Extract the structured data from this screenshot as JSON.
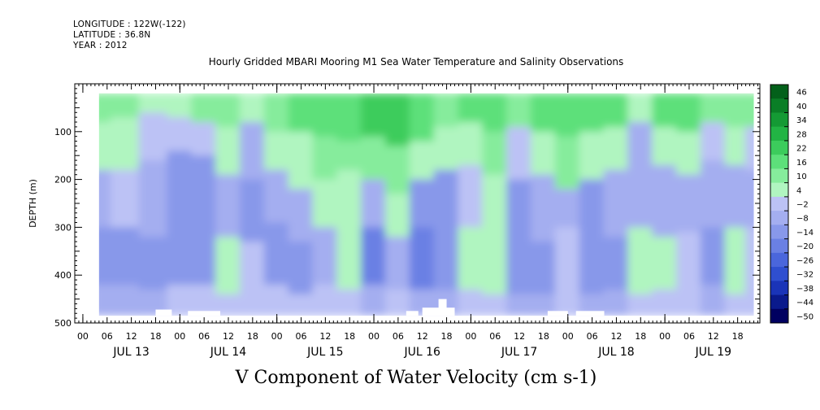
{
  "header": {
    "longitude": "LONGITUDE : 122W(-122)",
    "latitude": "LATITUDE : 36.8N",
    "year": "YEAR : 2012"
  },
  "chart_data": {
    "type": "heatmap",
    "title": "Hourly Gridded MBARI Mooring M1 Sea Water Temperature and Salinity Observations",
    "variable_label": "V Component of Water Velocity (cm s-1)",
    "ylabel": "DEPTH (m)",
    "ylim": [
      500,
      0
    ],
    "y_ticks": [
      100,
      200,
      300,
      400,
      500
    ],
    "y_data_range": [
      20,
      485
    ],
    "hour_ticks": [
      "00",
      "06",
      "12",
      "18",
      "00",
      "06",
      "12",
      "18",
      "00",
      "06",
      "12",
      "18",
      "00",
      "06",
      "12",
      "18",
      "00",
      "06",
      "12",
      "18",
      "00",
      "06",
      "12",
      "18",
      "00",
      "06",
      "12",
      "18"
    ],
    "day_labels": [
      "JUL 13",
      "JUL 14",
      "JUL 15",
      "JUL 16",
      "JUL 17",
      "JUL 18",
      "JUL 19"
    ],
    "x_axis_hours_range": [
      -2,
      167.5
    ],
    "x_data_hours_range": [
      4,
      166
    ],
    "colorbar": {
      "levels": [
        -50,
        -44,
        -38,
        -32,
        -26,
        -20,
        -14,
        -8,
        -2,
        4,
        10,
        16,
        22,
        28,
        34,
        40,
        46
      ],
      "label_levels": [
        46,
        40,
        34,
        28,
        22,
        16,
        10,
        4,
        -2,
        -8,
        -14,
        -20,
        -26,
        -32,
        -38,
        -44,
        -50
      ],
      "colors": [
        "#000060",
        "#0a1a8c",
        "#1a34b8",
        "#2f4fd0",
        "#4a66dc",
        "#6a80e4",
        "#8898ea",
        "#a4aef0",
        "#bcc2f5",
        "#b0f5c0",
        "#86ec9c",
        "#5de07a",
        "#3ccc5c",
        "#22b444",
        "#149a34",
        "#0a7e26",
        "#03601a"
      ]
    },
    "columns": [
      {
        "t": 4,
        "bands": [
          [
            20,
            80,
            14
          ],
          [
            80,
            180,
            6
          ],
          [
            180,
            300,
            -4
          ],
          [
            300,
            420,
            -10
          ],
          [
            420,
            485,
            -4
          ]
        ]
      },
      {
        "t": 10,
        "bands": [
          [
            20,
            70,
            12
          ],
          [
            70,
            180,
            8
          ],
          [
            180,
            300,
            2
          ],
          [
            300,
            420,
            -8
          ],
          [
            420,
            485,
            -3
          ]
        ]
      },
      {
        "t": 18,
        "bands": [
          [
            20,
            60,
            10
          ],
          [
            60,
            160,
            4
          ],
          [
            160,
            320,
            -6
          ],
          [
            320,
            430,
            -12
          ],
          [
            430,
            485,
            -4
          ]
        ]
      },
      {
        "t": 24,
        "bands": [
          [
            20,
            70,
            10
          ],
          [
            70,
            140,
            2
          ],
          [
            140,
            330,
            -10
          ],
          [
            330,
            420,
            -8
          ],
          [
            420,
            485,
            2
          ]
        ]
      },
      {
        "t": 30,
        "bands": [
          [
            20,
            80,
            12
          ],
          [
            80,
            150,
            4
          ],
          [
            150,
            300,
            -8
          ],
          [
            300,
            420,
            -10
          ],
          [
            420,
            485,
            0
          ]
        ]
      },
      {
        "t": 36,
        "bands": [
          [
            20,
            90,
            12
          ],
          [
            90,
            190,
            8
          ],
          [
            190,
            320,
            -4
          ],
          [
            320,
            440,
            6
          ],
          [
            440,
            485,
            2
          ]
        ]
      },
      {
        "t": 42,
        "bands": [
          [
            20,
            80,
            10
          ],
          [
            80,
            200,
            -4
          ],
          [
            200,
            330,
            -8
          ],
          [
            330,
            430,
            4
          ],
          [
            430,
            485,
            0
          ]
        ]
      },
      {
        "t": 48,
        "bands": [
          [
            20,
            100,
            16
          ],
          [
            100,
            180,
            10
          ],
          [
            180,
            290,
            -4
          ],
          [
            290,
            420,
            -8
          ],
          [
            420,
            485,
            4
          ]
        ]
      },
      {
        "t": 54,
        "bands": [
          [
            20,
            100,
            18
          ],
          [
            100,
            220,
            10
          ],
          [
            220,
            330,
            -2
          ],
          [
            330,
            440,
            -8
          ],
          [
            440,
            485,
            2
          ]
        ]
      },
      {
        "t": 60,
        "bands": [
          [
            20,
            110,
            18
          ],
          [
            110,
            200,
            12
          ],
          [
            200,
            300,
            6
          ],
          [
            300,
            420,
            -6
          ],
          [
            420,
            485,
            2
          ]
        ]
      },
      {
        "t": 66,
        "bands": [
          [
            20,
            120,
            22
          ],
          [
            120,
            180,
            12
          ],
          [
            180,
            320,
            6
          ],
          [
            320,
            430,
            10
          ],
          [
            430,
            485,
            4
          ]
        ]
      },
      {
        "t": 72,
        "bands": [
          [
            20,
            110,
            24
          ],
          [
            110,
            200,
            14
          ],
          [
            200,
            300,
            -6
          ],
          [
            300,
            420,
            -14
          ],
          [
            420,
            485,
            -4
          ]
        ]
      },
      {
        "t": 78,
        "bands": [
          [
            20,
            130,
            26
          ],
          [
            130,
            230,
            14
          ],
          [
            230,
            320,
            6
          ],
          [
            320,
            430,
            -6
          ],
          [
            430,
            485,
            2
          ]
        ]
      },
      {
        "t": 84,
        "bands": [
          [
            20,
            120,
            22
          ],
          [
            120,
            200,
            10
          ],
          [
            200,
            300,
            -10
          ],
          [
            300,
            430,
            -14
          ],
          [
            430,
            485,
            -6
          ]
        ]
      },
      {
        "t": 90,
        "bands": [
          [
            20,
            90,
            16
          ],
          [
            90,
            180,
            8
          ],
          [
            180,
            300,
            -8
          ],
          [
            300,
            430,
            -12
          ],
          [
            430,
            485,
            -4
          ]
        ]
      },
      {
        "t": 96,
        "bands": [
          [
            20,
            80,
            18
          ],
          [
            80,
            170,
            10
          ],
          [
            170,
            300,
            2
          ],
          [
            300,
            430,
            8
          ],
          [
            430,
            485,
            2
          ]
        ]
      },
      {
        "t": 102,
        "bands": [
          [
            20,
            100,
            22
          ],
          [
            100,
            190,
            14
          ],
          [
            190,
            330,
            10
          ],
          [
            330,
            440,
            6
          ],
          [
            440,
            485,
            0
          ]
        ]
      },
      {
        "t": 108,
        "bands": [
          [
            20,
            90,
            14
          ],
          [
            90,
            200,
            4
          ],
          [
            200,
            330,
            -10
          ],
          [
            330,
            440,
            -12
          ],
          [
            440,
            485,
            -4
          ]
        ]
      },
      {
        "t": 114,
        "bands": [
          [
            20,
            100,
            20
          ],
          [
            100,
            190,
            10
          ],
          [
            190,
            330,
            -6
          ],
          [
            330,
            440,
            -10
          ],
          [
            440,
            485,
            -2
          ]
        ]
      },
      {
        "t": 120,
        "bands": [
          [
            20,
            110,
            20
          ],
          [
            110,
            220,
            12
          ],
          [
            220,
            300,
            -4
          ],
          [
            300,
            420,
            4
          ],
          [
            420,
            485,
            0
          ]
        ]
      },
      {
        "t": 126,
        "bands": [
          [
            20,
            100,
            22
          ],
          [
            100,
            200,
            10
          ],
          [
            200,
            320,
            -8
          ],
          [
            320,
            440,
            -12
          ],
          [
            440,
            485,
            -4
          ]
        ]
      },
      {
        "t": 132,
        "bands": [
          [
            20,
            90,
            18
          ],
          [
            90,
            180,
            8
          ],
          [
            180,
            320,
            -4
          ],
          [
            320,
            430,
            -10
          ],
          [
            430,
            485,
            -2
          ]
        ]
      },
      {
        "t": 138,
        "bands": [
          [
            20,
            80,
            10
          ],
          [
            80,
            160,
            -2
          ],
          [
            160,
            300,
            -6
          ],
          [
            300,
            440,
            6
          ],
          [
            440,
            485,
            2
          ]
        ]
      },
      {
        "t": 144,
        "bands": [
          [
            20,
            90,
            20
          ],
          [
            90,
            170,
            8
          ],
          [
            170,
            320,
            -4
          ],
          [
            320,
            430,
            8
          ],
          [
            430,
            485,
            4
          ]
        ]
      },
      {
        "t": 150,
        "bands": [
          [
            20,
            100,
            18
          ],
          [
            100,
            190,
            6
          ],
          [
            190,
            310,
            -6
          ],
          [
            310,
            430,
            4
          ],
          [
            430,
            485,
            2
          ]
        ]
      },
      {
        "t": 156,
        "bands": [
          [
            20,
            80,
            12
          ],
          [
            80,
            160,
            4
          ],
          [
            160,
            300,
            -4
          ],
          [
            300,
            420,
            -8
          ],
          [
            420,
            485,
            -2
          ]
        ]
      },
      {
        "t": 162,
        "bands": [
          [
            20,
            90,
            14
          ],
          [
            90,
            170,
            6
          ],
          [
            170,
            300,
            -2
          ],
          [
            300,
            440,
            6
          ],
          [
            440,
            485,
            2
          ]
        ]
      },
      {
        "t": 166,
        "bands": [
          [
            20,
            90,
            12
          ],
          [
            90,
            180,
            4
          ],
          [
            180,
            300,
            -2
          ],
          [
            300,
            440,
            4
          ],
          [
            440,
            485,
            2
          ]
        ]
      }
    ],
    "missing_patches": [
      {
        "t0": 18,
        "t1": 22,
        "d0": 472,
        "d1": 485
      },
      {
        "t0": 26,
        "t1": 34,
        "d0": 475,
        "d1": 485
      },
      {
        "t0": 80,
        "t1": 83,
        "d0": 475,
        "d1": 485
      },
      {
        "t0": 84,
        "t1": 92,
        "d0": 468,
        "d1": 485
      },
      {
        "t0": 88,
        "t1": 90,
        "d0": 450,
        "d1": 485
      },
      {
        "t0": 115,
        "t1": 120,
        "d0": 475,
        "d1": 485
      },
      {
        "t0": 122,
        "t1": 129,
        "d0": 475,
        "d1": 485
      }
    ]
  }
}
